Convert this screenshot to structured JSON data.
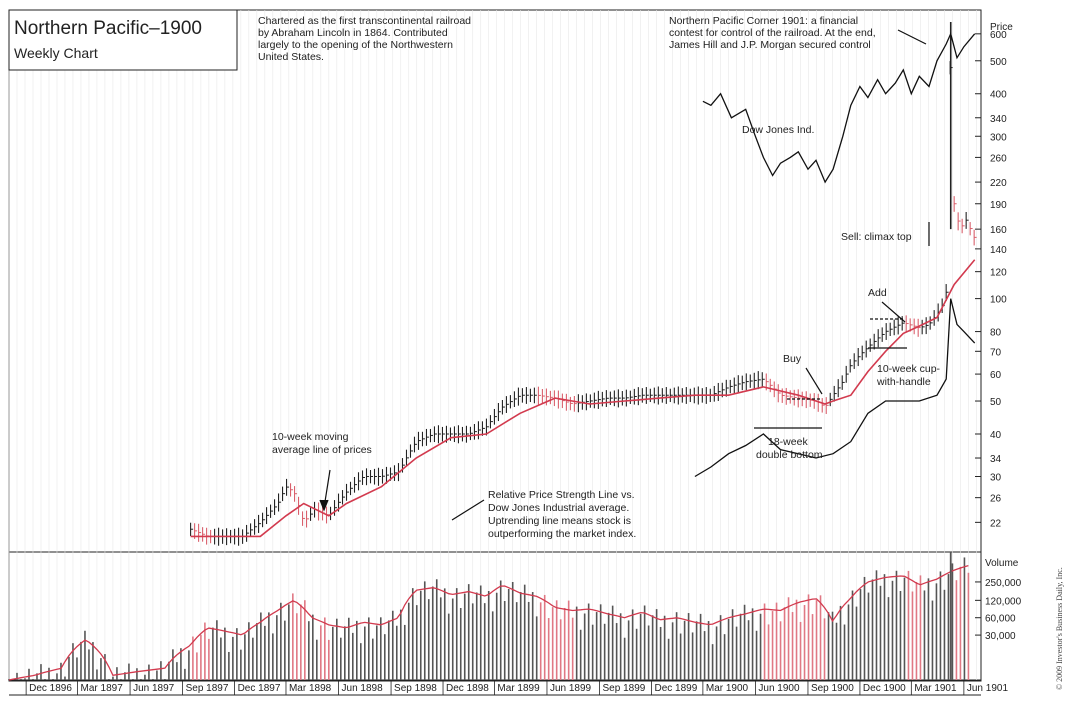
{
  "chart_data": {
    "type": "line",
    "title": "Northern Pacific–1900",
    "subtitle": "Weekly Chart",
    "intro_note": [
      "Chartered as the first transcontinental railroad",
      "by Abraham Lincoln in 1864. Contributed",
      "largely to the opening of the Northwestern",
      "United States."
    ],
    "corner_note": [
      "Northern Pacific Corner 1901: a financial",
      "contest for control of the railroad. At the end,",
      "James Hill and J.P. Morgan secured control"
    ],
    "price_axis_label": "Price",
    "price_ticks": [
      600,
      500,
      400,
      340,
      300,
      260,
      220,
      190,
      160,
      140,
      120,
      100,
      80,
      70,
      60,
      50,
      40,
      34,
      30,
      26,
      22
    ],
    "volume_axis_label": "Volume",
    "volume_ticks": [
      "250,000",
      "120,000",
      "60,000",
      "30,000"
    ],
    "x_ticks": [
      "Dec 1896",
      "Mar 1897",
      "Jun 1897",
      "Sep 1897",
      "Dec 1897",
      "Mar 1898",
      "Jun 1898",
      "Sep 1898",
      "Dec 1898",
      "Mar 1899",
      "Jun 1899",
      "Sep 1899",
      "Dec 1899",
      "Mar 1900",
      "Jun 1900",
      "Sep 1900",
      "Dec 1900",
      "Mar 1901",
      "Jun 1901"
    ],
    "annotations": {
      "ma_label": [
        "10-week moving",
        "average line of prices"
      ],
      "rs_label": [
        "Relative Price Strength Line vs.",
        "Dow Jones Industrial average.",
        "Uptrending line means stock is",
        "outperforming the market index."
      ],
      "dow_label": "Dow Jones Ind.",
      "climax": "Sell: climax top",
      "add": "Add",
      "buy": "Buy",
      "cup": [
        "10-week cup-",
        "with-handle"
      ],
      "double_bottom": [
        "18-week",
        "double bottom"
      ]
    },
    "copyright": "© 2009 Investor's Business Daily, Inc.",
    "series": [
      {
        "kind": "price",
        "x": [
          "1897-09-15",
          "1897-10-15",
          "1897-11-15",
          "1897-12-15",
          "1898-01-15",
          "1898-02-15",
          "1898-03-01",
          "1898-03-15",
          "1898-04-01",
          "1898-04-20",
          "1898-05-15",
          "1898-06-15",
          "1898-07-15",
          "1898-08-15",
          "1898-09-15",
          "1898-10-15",
          "1898-11-15",
          "1898-12-15",
          "1899-01-15",
          "1899-02-15",
          "1899-03-15",
          "1899-04-15",
          "1899-05-15",
          "1899-06-15",
          "1899-07-15",
          "1899-08-15",
          "1899-09-15",
          "1899-10-15",
          "1899-11-15",
          "1899-12-15",
          "1900-01-15",
          "1900-02-15",
          "1900-03-15",
          "1900-04-15",
          "1900-05-15",
          "1900-06-15",
          "1900-07-15",
          "1900-08-15",
          "1900-09-15",
          "1900-10-01",
          "1900-10-15",
          "1900-11-01",
          "1900-11-15",
          "1900-12-15",
          "1901-01-15",
          "1901-02-15",
          "1901-03-15",
          "1901-04-01",
          "1901-04-15",
          "1901-04-25",
          "1901-05-05",
          "1901-05-09",
          "1901-05-15",
          "1901-05-25",
          "1901-06-05",
          "1901-06-20"
        ],
        "y": [
          21,
          20,
          20,
          20,
          22,
          25,
          28,
          27,
          22,
          24,
          23,
          27,
          30,
          30,
          31,
          38,
          40,
          40,
          40,
          42,
          48,
          52,
          52,
          51,
          49,
          50,
          51,
          51,
          52,
          52,
          52,
          52,
          52,
          55,
          57,
          58,
          52,
          51,
          50,
          48,
          52,
          57,
          64,
          72,
          80,
          85,
          82,
          84,
          90,
          96,
          110,
          600,
          190,
          160,
          170,
          150
        ]
      },
      {
        "kind": "moving_average",
        "x": [
          "1897-09-15",
          "1897-11-15",
          "1898-01-15",
          "1898-03-01",
          "1898-04-01",
          "1898-05-15",
          "1898-06-15",
          "1898-08-15",
          "1898-10-15",
          "1898-12-15",
          "1899-02-15",
          "1899-04-15",
          "1899-06-15",
          "1899-08-15",
          "1899-10-15",
          "1899-12-15",
          "1900-02-15",
          "1900-04-15",
          "1900-06-15",
          "1900-08-15",
          "1900-09-15",
          "1900-10-01",
          "1900-10-15",
          "1900-11-15",
          "1900-12-15",
          "1901-01-15",
          "1901-02-15",
          "1901-03-15",
          "1901-04-15",
          "1901-05-15",
          "1901-06-20"
        ],
        "y": [
          20,
          20,
          20,
          23,
          25,
          23,
          25,
          28,
          34,
          39,
          40,
          46,
          51,
          49,
          50,
          51,
          52,
          52,
          55,
          52,
          50,
          49,
          50,
          52,
          61,
          70,
          79,
          83,
          88,
          110,
          130
        ]
      },
      {
        "kind": "relative_strength",
        "x": [
          "1900-02-15",
          "1900-03-15",
          "1900-04-15",
          "1900-05-15",
          "1900-06-15",
          "1900-07-15",
          "1900-08-15",
          "1900-09-15",
          "1900-10-15",
          "1900-11-15",
          "1900-12-15",
          "1901-01-15",
          "1901-02-15",
          "1901-03-15",
          "1901-04-15",
          "1901-05-01",
          "1901-05-09",
          "1901-05-20",
          "1901-06-01",
          "1901-06-20"
        ],
        "y": [
          30,
          32,
          35,
          37,
          40,
          36,
          35,
          34,
          35,
          38,
          46,
          50,
          50,
          50,
          52,
          58,
          100,
          84,
          80,
          74
        ]
      },
      {
        "kind": "dow_jones",
        "x": [
          "1900-03-01",
          "1900-03-15",
          "1900-04-01",
          "1900-04-20",
          "1900-05-15",
          "1900-06-01",
          "1900-06-15",
          "1900-07-01",
          "1900-07-15",
          "1900-08-01",
          "1900-08-15",
          "1900-09-01",
          "1900-09-15",
          "1900-10-01",
          "1900-10-15",
          "1900-11-01",
          "1900-11-15",
          "1900-12-01",
          "1900-12-15",
          "1901-01-01",
          "1901-01-15",
          "1901-02-01",
          "1901-02-15",
          "1901-03-01",
          "1901-03-15",
          "1901-04-01",
          "1901-04-15",
          "1901-05-01",
          "1901-05-09",
          "1901-05-20",
          "1901-06-01",
          "1901-06-20"
        ],
        "y": [
          380,
          370,
          400,
          340,
          360,
          300,
          260,
          230,
          250,
          260,
          270,
          240,
          255,
          220,
          240,
          300,
          370,
          420,
          390,
          440,
          400,
          430,
          470,
          400,
          450,
          420,
          500,
          560,
          600,
          510,
          550,
          600
        ]
      },
      {
        "kind": "volume",
        "x": [
          "1896-11-01",
          "1896-12-15",
          "1897-02-01",
          "1897-03-15",
          "1897-05-01",
          "1897-06-15",
          "1897-08-01",
          "1897-09-15",
          "1897-10-15",
          "1897-11-15",
          "1897-12-15",
          "1898-01-15",
          "1898-02-15",
          "1898-03-15",
          "1898-04-15",
          "1898-05-15",
          "1898-06-15",
          "1898-07-15",
          "1898-08-15",
          "1898-09-15",
          "1898-10-15",
          "1898-11-15",
          "1898-12-15",
          "1899-01-15",
          "1899-02-15",
          "1899-03-15",
          "1899-04-15",
          "1899-05-15",
          "1899-06-15",
          "1899-07-15",
          "1899-08-15",
          "1899-09-15",
          "1899-10-15",
          "1899-11-15",
          "1899-12-15",
          "1900-01-15",
          "1900-02-15",
          "1900-03-15",
          "1900-04-15",
          "1900-05-15",
          "1900-06-15",
          "1900-07-15",
          "1900-08-15",
          "1900-09-15",
          "1900-10-15",
          "1900-11-15",
          "1900-12-15",
          "1901-01-15",
          "1901-02-15",
          "1901-03-15",
          "1901-04-15",
          "1901-05-15",
          "1901-06-15"
        ],
        "y": [
          5000,
          6000,
          8000,
          25000,
          6000,
          7000,
          8000,
          20000,
          40000,
          35000,
          30000,
          50000,
          80000,
          120000,
          60000,
          45000,
          40000,
          50000,
          45000,
          60000,
          180000,
          200000,
          150000,
          170000,
          140000,
          220000,
          160000,
          140000,
          90000,
          80000,
          85000,
          70000,
          60000,
          75000,
          55000,
          60000,
          50000,
          45000,
          60000,
          70000,
          85000,
          80000,
          110000,
          130000,
          50000,
          130000,
          250000,
          300000,
          320000,
          220000,
          280000,
          400000,
          500000
        ]
      }
    ]
  }
}
